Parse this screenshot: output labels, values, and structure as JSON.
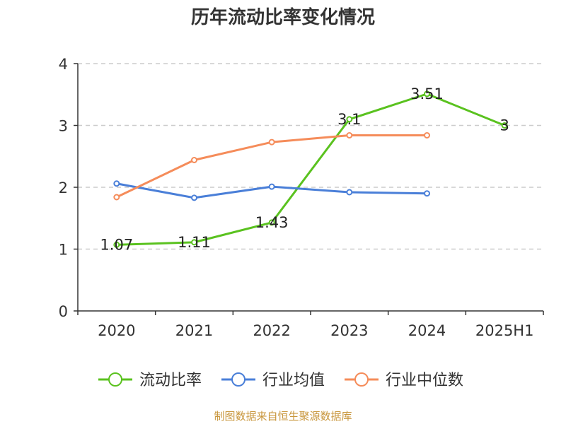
{
  "title": "历年流动比率变化情况",
  "source": "制图数据来自恒生聚源数据库",
  "chart_data": {
    "type": "line",
    "title": "历年流动比率变化情况",
    "xlabel": "",
    "ylabel": "",
    "categories": [
      "2020",
      "2021",
      "2022",
      "2023",
      "2024",
      "2025H1"
    ],
    "ylim": [
      0,
      4
    ],
    "yticks": [
      "0",
      "1",
      "2",
      "3",
      "4"
    ],
    "grid": true,
    "legend_position": "bottom",
    "series": [
      {
        "name": "流动比率",
        "color": "#5ac21f",
        "values": [
          1.07,
          1.11,
          1.43,
          3.1,
          3.51,
          3
        ],
        "labels": [
          "1.07",
          "1.11",
          "1.43",
          "3.1",
          "3.51",
          "3"
        ]
      },
      {
        "name": "行业均值",
        "color": "#4a7fd8",
        "values": [
          2.06,
          1.83,
          2.01,
          1.92,
          1.9,
          null
        ]
      },
      {
        "name": "行业中位数",
        "color": "#f58c5a",
        "values": [
          1.84,
          2.44,
          2.73,
          2.84,
          2.84,
          null
        ]
      }
    ]
  }
}
